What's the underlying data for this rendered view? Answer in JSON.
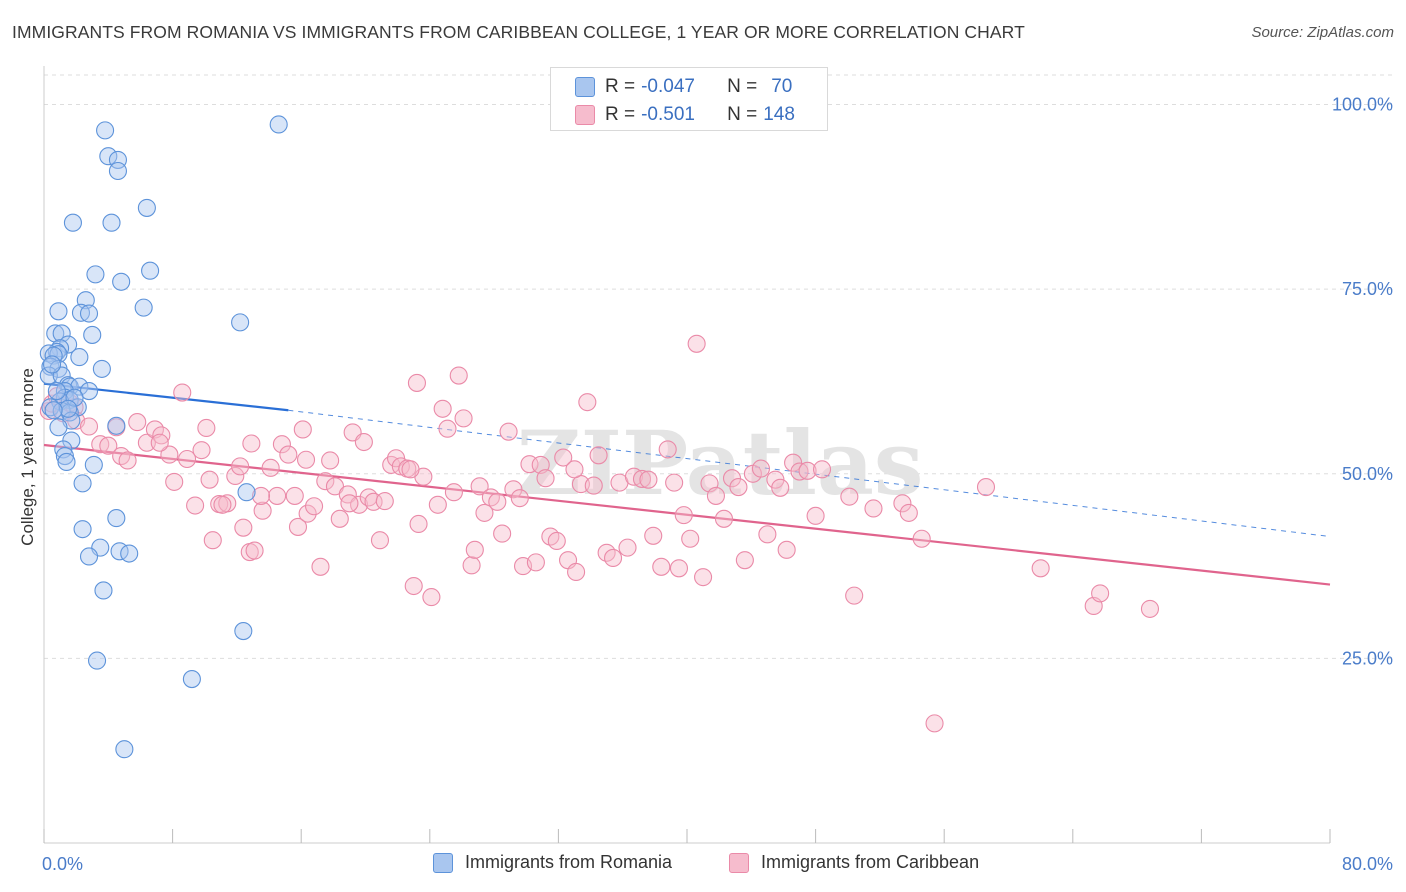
{
  "title": "IMMIGRANTS FROM ROMANIA VS IMMIGRANTS FROM CARIBBEAN COLLEGE, 1 YEAR OR MORE CORRELATION CHART",
  "source": "Source: ZipAtlas.com",
  "watermark": "ZIPatlas",
  "colors": {
    "blue_fill": "#a9c6ef",
    "blue_stroke": "#5d93da",
    "blue_line": "#2a6fd6",
    "pink_fill": "#f6bccd",
    "pink_stroke": "#ea8aa8",
    "pink_line": "#e0648d",
    "axis_text": "#4a7cc9",
    "grid": "#dddddd"
  },
  "stats": [
    {
      "r_label": "R =",
      "r_value": "-0.047",
      "n_label": "N =",
      "n_value": "70"
    },
    {
      "r_label": "R =",
      "r_value": "-0.501",
      "n_label": "N =",
      "n_value": "148"
    }
  ],
  "chart_data": {
    "type": "scatter",
    "xlabel": "",
    "ylabel": "College, 1 year or more",
    "xlim": [
      0,
      80
    ],
    "ylim": [
      0,
      104
    ],
    "x_tick_labels": [
      "0.0%",
      "80.0%"
    ],
    "y_ticks": [
      25,
      50,
      75,
      100
    ],
    "y_tick_labels": [
      "25.0%",
      "50.0%",
      "75.0%",
      "100.0%"
    ],
    "grid": true,
    "legend_position": "bottom",
    "series": [
      {
        "name": "Immigrants from Romania",
        "color": "blue",
        "trend": {
          "x": [
            0,
            15.2
          ],
          "y": [
            62.2,
            58.6
          ],
          "dashed_to_x": 80,
          "dashed_end_y": 41.5
        },
        "points": [
          [
            3.8,
            96.5
          ],
          [
            14.6,
            97.3
          ],
          [
            4.0,
            93
          ],
          [
            4.6,
            92.5
          ],
          [
            4.6,
            91
          ],
          [
            6.4,
            86
          ],
          [
            1.8,
            84
          ],
          [
            4.2,
            84
          ],
          [
            6.6,
            77.5
          ],
          [
            3.2,
            77
          ],
          [
            4.8,
            76
          ],
          [
            2.6,
            73.5
          ],
          [
            6.2,
            72.5
          ],
          [
            0.9,
            72
          ],
          [
            2.3,
            71.8
          ],
          [
            2.8,
            71.7
          ],
          [
            12.2,
            70.5
          ],
          [
            3.0,
            68.8
          ],
          [
            0.7,
            69
          ],
          [
            1.1,
            69
          ],
          [
            1.5,
            67.5
          ],
          [
            1.0,
            67
          ],
          [
            0.8,
            66.5
          ],
          [
            0.3,
            66.3
          ],
          [
            0.9,
            66.2
          ],
          [
            0.6,
            66
          ],
          [
            2.2,
            65.8
          ],
          [
            0.4,
            64.5
          ],
          [
            0.9,
            64.2
          ],
          [
            3.6,
            64.2
          ],
          [
            0.3,
            63.3
          ],
          [
            1.1,
            63.3
          ],
          [
            1.5,
            62.0
          ],
          [
            1.6,
            61.8
          ],
          [
            2.2,
            61.8
          ],
          [
            1.3,
            61.2
          ],
          [
            2.8,
            61.2
          ],
          [
            1.3,
            60.3
          ],
          [
            1.6,
            60.0
          ],
          [
            1.0,
            59.8
          ],
          [
            0.4,
            59.0
          ],
          [
            2.1,
            59.0
          ],
          [
            1.1,
            58.5
          ],
          [
            1.6,
            58.3
          ],
          [
            1.7,
            57.2
          ],
          [
            4.5,
            56.5
          ],
          [
            0.9,
            56.3
          ],
          [
            1.7,
            54.5
          ],
          [
            1.2,
            53.3
          ],
          [
            1.3,
            52.4
          ],
          [
            1.4,
            51.6
          ],
          [
            3.1,
            51.2
          ],
          [
            2.4,
            48.7
          ],
          [
            12.6,
            47.5
          ],
          [
            4.5,
            44.0
          ],
          [
            2.4,
            42.5
          ],
          [
            4.7,
            39.5
          ],
          [
            5.3,
            39.2
          ],
          [
            3.5,
            40.0
          ],
          [
            2.8,
            38.8
          ],
          [
            3.7,
            34.2
          ],
          [
            12.4,
            28.7
          ],
          [
            3.3,
            24.7
          ],
          [
            9.2,
            22.2
          ],
          [
            5.0,
            12.7
          ],
          [
            1.9,
            60.3
          ],
          [
            0.5,
            64.8
          ],
          [
            0.8,
            61.2
          ],
          [
            1.5,
            58.8
          ],
          [
            0.6,
            58.6
          ]
        ]
      },
      {
        "name": "Immigrants from Caribbean",
        "color": "pink",
        "trend": {
          "x": [
            0,
            80
          ],
          "y": [
            53.9,
            35.0
          ]
        },
        "points": [
          [
            0.3,
            58.5
          ],
          [
            0.5,
            59.5
          ],
          [
            0.8,
            60.5
          ],
          [
            1.2,
            58.2
          ],
          [
            1.6,
            59.6
          ],
          [
            1.9,
            59.0
          ],
          [
            2.0,
            57.2
          ],
          [
            2.8,
            56.4
          ],
          [
            3.5,
            54.0
          ],
          [
            4.0,
            53.8
          ],
          [
            4.5,
            56.3
          ],
          [
            4.8,
            52.4
          ],
          [
            5.2,
            51.8
          ],
          [
            5.8,
            57.0
          ],
          [
            6.4,
            54.2
          ],
          [
            6.9,
            56.0
          ],
          [
            7.3,
            55.2
          ],
          [
            7.8,
            52.6
          ],
          [
            8.1,
            48.9
          ],
          [
            8.6,
            61.0
          ],
          [
            8.9,
            52.0
          ],
          [
            9.4,
            45.7
          ],
          [
            9.8,
            53.2
          ],
          [
            10.1,
            56.2
          ],
          [
            10.3,
            49.2
          ],
          [
            10.5,
            41.0
          ],
          [
            10.9,
            45.9
          ],
          [
            11.4,
            46.0
          ],
          [
            11.9,
            49.7
          ],
          [
            12.2,
            51.0
          ],
          [
            12.4,
            42.7
          ],
          [
            12.8,
            39.4
          ],
          [
            13.1,
            39.6
          ],
          [
            13.6,
            45.0
          ],
          [
            14.1,
            50.8
          ],
          [
            14.5,
            47.0
          ],
          [
            14.8,
            54.0
          ],
          [
            15.2,
            52.6
          ],
          [
            15.6,
            47.0
          ],
          [
            15.8,
            42.8
          ],
          [
            16.1,
            56.0
          ],
          [
            16.4,
            44.6
          ],
          [
            16.8,
            45.6
          ],
          [
            17.2,
            37.4
          ],
          [
            17.5,
            49.0
          ],
          [
            17.8,
            51.8
          ],
          [
            18.1,
            48.3
          ],
          [
            18.4,
            43.9
          ],
          [
            18.9,
            47.2
          ],
          [
            19.2,
            55.6
          ],
          [
            19.6,
            45.8
          ],
          [
            19.9,
            54.3
          ],
          [
            20.2,
            46.8
          ],
          [
            20.5,
            46.2
          ],
          [
            20.9,
            41.0
          ],
          [
            21.2,
            46.3
          ],
          [
            21.6,
            51.2
          ],
          [
            21.9,
            52.1
          ],
          [
            22.2,
            51.0
          ],
          [
            22.6,
            50.7
          ],
          [
            23.0,
            34.8
          ],
          [
            23.3,
            43.2
          ],
          [
            23.6,
            49.6
          ],
          [
            24.1,
            33.3
          ],
          [
            24.5,
            45.8
          ],
          [
            24.8,
            58.8
          ],
          [
            25.1,
            56.1
          ],
          [
            25.5,
            47.5
          ],
          [
            25.8,
            63.3
          ],
          [
            26.1,
            57.5
          ],
          [
            23.2,
            62.3
          ],
          [
            22.8,
            50.6
          ],
          [
            26.6,
            37.6
          ],
          [
            26.8,
            39.7
          ],
          [
            27.1,
            48.3
          ],
          [
            27.4,
            44.7
          ],
          [
            27.8,
            46.8
          ],
          [
            28.2,
            46.2
          ],
          [
            28.5,
            41.9
          ],
          [
            28.9,
            55.7
          ],
          [
            29.2,
            47.9
          ],
          [
            29.6,
            46.7
          ],
          [
            29.8,
            37.5
          ],
          [
            30.2,
            51.3
          ],
          [
            30.6,
            38.0
          ],
          [
            30.9,
            51.2
          ],
          [
            31.2,
            49.4
          ],
          [
            31.5,
            41.5
          ],
          [
            31.9,
            40.9
          ],
          [
            32.3,
            52.2
          ],
          [
            32.6,
            38.3
          ],
          [
            33.1,
            36.7
          ],
          [
            33.4,
            48.6
          ],
          [
            33.8,
            59.7
          ],
          [
            34.2,
            48.4
          ],
          [
            34.5,
            52.5
          ],
          [
            35.0,
            39.3
          ],
          [
            35.4,
            38.6
          ],
          [
            35.8,
            48.8
          ],
          [
            36.3,
            40.0
          ],
          [
            36.7,
            49.6
          ],
          [
            37.2,
            49.3
          ],
          [
            37.6,
            49.2
          ],
          [
            37.9,
            41.6
          ],
          [
            38.4,
            37.4
          ],
          [
            38.8,
            53.3
          ],
          [
            39.2,
            48.8
          ],
          [
            39.5,
            37.2
          ],
          [
            39.8,
            44.4
          ],
          [
            40.2,
            41.2
          ],
          [
            40.6,
            67.6
          ],
          [
            41.0,
            36.0
          ],
          [
            41.4,
            48.7
          ],
          [
            41.8,
            47.0
          ],
          [
            42.3,
            43.9
          ],
          [
            42.8,
            49.4
          ],
          [
            43.2,
            48.2
          ],
          [
            43.6,
            38.3
          ],
          [
            44.1,
            50.0
          ],
          [
            44.6,
            50.7
          ],
          [
            45.0,
            41.8
          ],
          [
            45.5,
            49.2
          ],
          [
            45.8,
            48.1
          ],
          [
            46.2,
            39.7
          ],
          [
            46.6,
            51.5
          ],
          [
            47.0,
            50.3
          ],
          [
            47.5,
            50.4
          ],
          [
            48.0,
            44.3
          ],
          [
            48.4,
            50.6
          ],
          [
            50.1,
            46.9
          ],
          [
            50.4,
            33.5
          ],
          [
            51.6,
            45.3
          ],
          [
            53.4,
            46.0
          ],
          [
            53.8,
            44.7
          ],
          [
            54.6,
            41.2
          ],
          [
            55.4,
            16.2
          ],
          [
            58.6,
            48.2
          ],
          [
            62.0,
            37.2
          ],
          [
            65.3,
            32.1
          ],
          [
            65.7,
            33.8
          ],
          [
            68.8,
            31.7
          ],
          [
            7.2,
            54.2
          ],
          [
            12.9,
            54.1
          ],
          [
            33.0,
            50.6
          ],
          [
            11.1,
            45.8
          ],
          [
            13.5,
            47.0
          ],
          [
            16.3,
            51.9
          ],
          [
            19.0,
            46.0
          ]
        ]
      }
    ]
  }
}
